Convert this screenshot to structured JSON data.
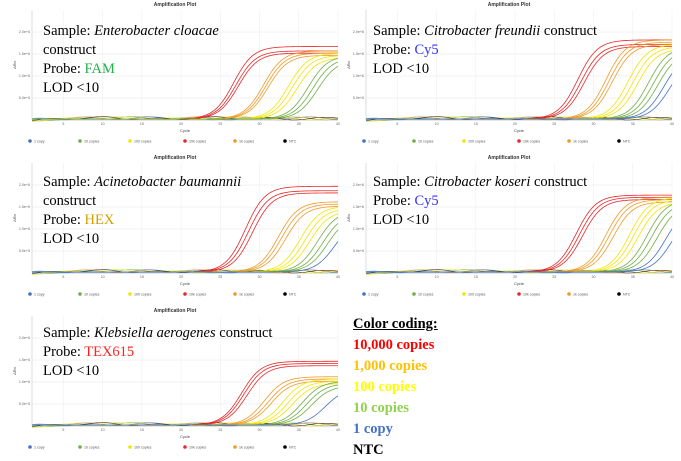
{
  "colors": {
    "c1": "#4472c4",
    "c10": "#70ad47",
    "c100": "#f2e600",
    "c10k": "#e8282b",
    "c1k": "#f09a28",
    "ntc": "#000000",
    "fam": "#21b24b",
    "cy5": "#3333ff",
    "hex": "#d4a000",
    "tex": "#ff2020"
  },
  "legend_labels": [
    "1 copy",
    "10 copies",
    "100 copies",
    "10k copies",
    "1k copies",
    "NTC"
  ],
  "x_ticks": [
    "5",
    "10",
    "15",
    "20",
    "25",
    "30",
    "35",
    "40"
  ],
  "y_ticks": [
    "2.0e+6",
    "1.5e+6",
    "1.0e+6",
    "5.0e+5"
  ],
  "panels": [
    {
      "title": "Amplification Plot",
      "xlabel": "Cycle",
      "ylabel": "ΔRn",
      "sample_prefix": "Sample: ",
      "sample_species": "Enterobacter cloacae",
      "sample_suffix": "",
      "line2": "construct",
      "probe_prefix": "Probe: ",
      "probe_name": "FAM",
      "probe_color": "#21b24b",
      "lod": "LOD <10"
    },
    {
      "title": "Amplification Plot",
      "xlabel": "Cycle",
      "ylabel": "ΔRn",
      "sample_prefix": "Sample: ",
      "sample_species": "Citrobacter freundii",
      "sample_suffix": " construct",
      "line2": "",
      "probe_prefix": "Probe: ",
      "probe_name": "Cy5",
      "probe_color": "#3333ff",
      "lod": "LOD <10"
    },
    {
      "title": "Amplification Plot",
      "xlabel": "Cycle",
      "ylabel": "ΔRn",
      "sample_prefix": "Sample: ",
      "sample_species": "Acinetobacter baumannii",
      "sample_suffix": "",
      "line2": "construct",
      "probe_prefix": "Probe: ",
      "probe_name": "HEX",
      "probe_color": "#d4a000",
      "lod": "LOD <10"
    },
    {
      "title": "Amplification Plot",
      "xlabel": "Cycle",
      "ylabel": "ΔRn",
      "sample_prefix": "Sample: ",
      "sample_species": "Citrobacter koseri",
      "sample_suffix": " construct",
      "line2": "",
      "probe_prefix": "Probe: ",
      "probe_name": "Cy5",
      "probe_color": "#3333ff",
      "lod": "LOD <10"
    },
    {
      "title": "Amplification Plot",
      "xlabel": "Cycle",
      "ylabel": "ΔRn",
      "sample_prefix": "Sample: ",
      "sample_species": "Klebsiella aerogenes",
      "sample_suffix": " construct",
      "line2": "",
      "probe_prefix": "Probe: ",
      "probe_name": "TEX615",
      "probe_color": "#ff2020",
      "lod": "LOD <10"
    }
  ],
  "color_coding": {
    "title": "Color coding:",
    "items": [
      {
        "label": "10,000 copies",
        "color": "#ff0000"
      },
      {
        "label": "1,000 copies",
        "color": "#ffc000"
      },
      {
        "label": "100 copies",
        "color": "#ffff00"
      },
      {
        "label": "10 copies",
        "color": "#92d050"
      },
      {
        "label": "1 copy",
        "color": "#4472c4"
      },
      {
        "label": "NTC",
        "color": "#000000"
      }
    ]
  },
  "chart_data": [
    {
      "type": "line",
      "title": "Amplification Plot",
      "xlabel": "Cycle",
      "ylabel": "ΔRn",
      "xlim": [
        1,
        40
      ],
      "ylim": [
        0,
        2500000
      ],
      "series": [
        {
          "name": "10k copies",
          "ct": [
            24.5,
            24.8,
            25.1
          ],
          "plateau": [
            1650000,
            1550000,
            1500000
          ]
        },
        {
          "name": "1k copies",
          "ct": [
            28.3,
            28.6,
            28.9
          ],
          "plateau": [
            1550000,
            1500000,
            1450000
          ]
        },
        {
          "name": "100 copies",
          "ct": [
            31.5,
            32.0,
            32.6
          ],
          "plateau": [
            1500000,
            1450000,
            1400000
          ]
        },
        {
          "name": "10 copies",
          "ct": [
            34.0,
            34.6,
            35.2
          ],
          "plateau": [
            1450000,
            1400000,
            1350000
          ]
        },
        {
          "name": "1 copy",
          "ct": [],
          "plateau": []
        },
        {
          "name": "NTC",
          "ct": [],
          "plateau": []
        }
      ]
    },
    {
      "type": "line",
      "title": "Amplification Plot",
      "xlabel": "Cycle",
      "ylabel": "ΔRn",
      "xlim": [
        1,
        40
      ],
      "ylim": [
        0,
        2500000
      ],
      "series": [
        {
          "name": "10k copies",
          "ct": [
            25.8,
            26.2,
            26.6
          ],
          "plateau": [
            1800000,
            1700000,
            1650000
          ]
        },
        {
          "name": "1k copies",
          "ct": [
            29.4,
            29.8,
            30.2
          ],
          "plateau": [
            1800000,
            1750000,
            1700000
          ]
        },
        {
          "name": "100 copies",
          "ct": [
            32.2,
            32.8,
            33.4
          ],
          "plateau": [
            1700000,
            1650000,
            1600000
          ]
        },
        {
          "name": "10 copies",
          "ct": [
            34.8,
            35.4,
            36.0
          ],
          "plateau": [
            1650000,
            1600000,
            1550000
          ]
        },
        {
          "name": "1 copy",
          "ct": [
            36.8,
            37.5
          ],
          "plateau": [
            1500000,
            1400000
          ]
        },
        {
          "name": "NTC",
          "ct": [],
          "plateau": []
        }
      ]
    },
    {
      "type": "line",
      "title": "Amplification Plot",
      "xlabel": "Cycle",
      "ylabel": "ΔRn",
      "xlim": [
        1,
        40
      ],
      "ylim": [
        0,
        2500000
      ],
      "series": [
        {
          "name": "10k copies",
          "ct": [
            26.0,
            26.4,
            26.9
          ],
          "plateau": [
            1950000,
            1850000,
            1800000
          ]
        },
        {
          "name": "1k copies",
          "ct": [
            30.2,
            30.6,
            31.1
          ],
          "plateau": [
            1600000,
            1550000,
            1500000
          ]
        },
        {
          "name": "100 copies",
          "ct": [
            33.0,
            33.6,
            34.2
          ],
          "plateau": [
            1500000,
            1450000,
            1400000
          ]
        },
        {
          "name": "10 copies",
          "ct": [
            35.2,
            35.9,
            36.5
          ],
          "plateau": [
            1400000,
            1350000,
            1300000
          ]
        },
        {
          "name": "1 copy",
          "ct": [
            37.4
          ],
          "plateau": [
            1200000
          ]
        },
        {
          "name": "NTC",
          "ct": [],
          "plateau": []
        }
      ]
    },
    {
      "type": "line",
      "title": "Amplification Plot",
      "xlabel": "Cycle",
      "ylabel": "ΔRn",
      "xlim": [
        1,
        40
      ],
      "ylim": [
        0,
        2500000
      ],
      "series": [
        {
          "name": "10k copies",
          "ct": [
            25.6,
            26.0,
            26.4
          ],
          "plateau": [
            1750000,
            1700000,
            1650000
          ]
        },
        {
          "name": "1k copies",
          "ct": [
            29.4,
            29.8,
            30.3
          ],
          "plateau": [
            1700000,
            1650000,
            1600000
          ]
        },
        {
          "name": "100 copies",
          "ct": [
            32.4,
            32.9,
            33.5
          ],
          "plateau": [
            1700000,
            1650000,
            1600000
          ]
        },
        {
          "name": "10 copies",
          "ct": [
            34.6,
            35.2,
            35.9
          ],
          "plateau": [
            1650000,
            1600000,
            1550000
          ]
        },
        {
          "name": "1 copy",
          "ct": [
            37.0,
            37.8
          ],
          "plateau": [
            1500000,
            1400000
          ]
        },
        {
          "name": "NTC",
          "ct": [],
          "plateau": []
        }
      ]
    },
    {
      "type": "line",
      "title": "Amplification Plot",
      "xlabel": "Cycle",
      "ylabel": "ΔRn",
      "xlim": [
        1,
        40
      ],
      "ylim": [
        0,
        2500000
      ],
      "series": [
        {
          "name": "10k copies",
          "ct": [
            25.5,
            25.8,
            26.2
          ],
          "plateau": [
            1450000,
            1400000,
            1350000
          ]
        },
        {
          "name": "1k copies",
          "ct": [
            28.4,
            28.9,
            29.3
          ],
          "plateau": [
            1100000,
            1050000,
            1000000
          ]
        },
        {
          "name": "100 copies",
          "ct": [
            30.8,
            31.4,
            32.0
          ],
          "plateau": [
            1050000,
            1000000,
            950000
          ]
        },
        {
          "name": "10 copies",
          "ct": [
            33.2,
            33.8,
            34.4
          ],
          "plateau": [
            1000000,
            950000,
            900000
          ]
        },
        {
          "name": "1 copy",
          "ct": [
            36.2
          ],
          "plateau": [
            850000
          ]
        },
        {
          "name": "NTC",
          "ct": [],
          "plateau": []
        }
      ]
    }
  ]
}
